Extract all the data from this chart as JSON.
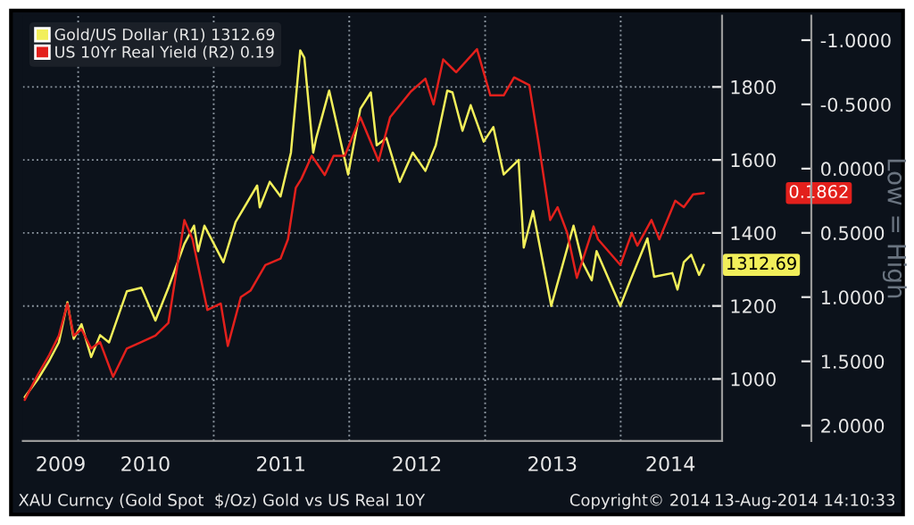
{
  "chart_data": {
    "type": "line",
    "xlim": [
      "2009-08-05",
      "2014-10-01"
    ],
    "xticks": [
      {
        "value": "2009-11-15",
        "label": "2009"
      },
      {
        "value": "2010-01-01",
        "label": null
      },
      {
        "value": "2010-07-01",
        "label": "2010"
      },
      {
        "value": "2011-01-01",
        "label": null
      },
      {
        "value": "2011-07-01",
        "label": "2011"
      },
      {
        "value": "2012-01-01",
        "label": null
      },
      {
        "value": "2012-07-01",
        "label": "2012"
      },
      {
        "value": "2013-01-01",
        "label": null
      },
      {
        "value": "2013-07-01",
        "label": "2013"
      },
      {
        "value": "2014-01-01",
        "label": null
      },
      {
        "value": "2014-05-15",
        "label": "2014"
      }
    ],
    "ylim": [
      830,
      1995
    ],
    "yticks": [
      1000,
      1200,
      1400,
      1600,
      1800
    ],
    "y2lim": [
      2.12,
      -1.19
    ],
    "y2ticks": [
      {
        "value": -1.0,
        "label": "-1.0000"
      },
      {
        "value": -0.5,
        "label": "-0.5000"
      },
      {
        "value": 0.0,
        "label": "0.0000"
      },
      {
        "value": 0.5,
        "label": "0.5000"
      },
      {
        "value": 1.0,
        "label": "1.0000"
      },
      {
        "value": 1.5,
        "label": "1.5000"
      },
      {
        "value": 2.0,
        "label": "2.0000"
      }
    ],
    "y2label": "Low = High",
    "grid": true,
    "legend": "top left",
    "series": [
      {
        "name": "Gold/US Dollar (R1) 1312.69",
        "color": "#f2ef5a",
        "x": [
          "2009-08-10",
          "2009-09-15",
          "2009-10-15",
          "2009-11-10",
          "2009-12-03",
          "2009-12-20",
          "2010-01-10",
          "2010-02-05",
          "2010-03-01",
          "2010-03-25",
          "2010-05-12",
          "2010-06-20",
          "2010-07-28",
          "2010-09-01",
          "2010-10-14",
          "2010-11-09",
          "2010-11-20",
          "2010-12-07",
          "2011-01-27",
          "2011-03-01",
          "2011-04-28",
          "2011-05-05",
          "2011-06-01",
          "2011-06-30",
          "2011-07-28",
          "2011-08-22",
          "2011-09-02",
          "2011-09-26",
          "2011-10-04",
          "2011-11-08",
          "2011-12-29",
          "2012-01-31",
          "2012-02-28",
          "2012-03-15",
          "2012-04-10",
          "2012-05-16",
          "2012-06-20",
          "2012-07-24",
          "2012-08-21",
          "2012-09-21",
          "2012-10-05",
          "2012-11-01",
          "2012-11-23",
          "2012-12-28",
          "2013-01-23",
          "2013-02-20",
          "2013-04-01",
          "2013-04-15",
          "2013-05-10",
          "2013-06-28",
          "2013-08-27",
          "2013-09-20",
          "2013-10-15",
          "2013-10-28",
          "2013-12-31",
          "2014-01-27",
          "2014-03-14",
          "2014-04-01",
          "2014-05-20",
          "2014-06-03",
          "2014-06-20",
          "2014-07-10",
          "2014-07-31",
          "2014-08-13"
        ],
        "values": [
          950,
          1000,
          1050,
          1100,
          1210,
          1110,
          1150,
          1060,
          1120,
          1100,
          1240,
          1250,
          1160,
          1250,
          1370,
          1420,
          1350,
          1420,
          1320,
          1430,
          1530,
          1470,
          1540,
          1500,
          1620,
          1900,
          1880,
          1620,
          1660,
          1790,
          1560,
          1740,
          1785,
          1640,
          1660,
          1540,
          1620,
          1570,
          1640,
          1790,
          1785,
          1680,
          1750,
          1650,
          1690,
          1560,
          1600,
          1360,
          1460,
          1200,
          1420,
          1320,
          1270,
          1350,
          1200,
          1270,
          1385,
          1280,
          1290,
          1245,
          1320,
          1340,
          1285,
          1312.69
        ]
      },
      {
        "name": "US 10Yr Real Yield (R2) 0.19",
        "color": "#e3201c",
        "axis": "y2",
        "x": [
          "2009-08-10",
          "2009-09-15",
          "2009-10-15",
          "2009-11-10",
          "2009-12-03",
          "2009-12-20",
          "2010-01-10",
          "2010-02-05",
          "2010-03-01",
          "2010-04-05",
          "2010-05-12",
          "2010-06-20",
          "2010-07-28",
          "2010-09-01",
          "2010-10-14",
          "2010-11-05",
          "2010-12-15",
          "2011-01-20",
          "2011-02-08",
          "2011-03-15",
          "2011-04-10",
          "2011-05-20",
          "2011-06-30",
          "2011-07-20",
          "2011-08-10",
          "2011-08-25",
          "2011-09-22",
          "2011-10-27",
          "2011-11-20",
          "2011-12-20",
          "2012-01-31",
          "2012-03-20",
          "2012-04-20",
          "2012-06-15",
          "2012-07-24",
          "2012-08-15",
          "2012-09-10",
          "2012-10-15",
          "2012-12-10",
          "2013-01-15",
          "2013-02-20",
          "2013-03-20",
          "2013-04-30",
          "2013-05-25",
          "2013-06-25",
          "2013-07-15",
          "2013-08-10",
          "2013-09-05",
          "2013-10-20",
          "2013-11-01",
          "2013-12-31",
          "2014-01-31",
          "2014-02-15",
          "2014-03-25",
          "2014-04-15",
          "2014-05-28",
          "2014-06-20",
          "2014-07-15",
          "2014-08-13"
        ],
        "values": [
          1.8,
          1.6,
          1.45,
          1.3,
          1.05,
          1.3,
          1.25,
          1.4,
          1.35,
          1.62,
          1.4,
          1.35,
          1.3,
          1.2,
          0.4,
          0.55,
          1.1,
          1.05,
          1.38,
          1.0,
          0.95,
          0.75,
          0.7,
          0.55,
          0.15,
          0.08,
          -0.1,
          0.05,
          -0.1,
          -0.1,
          -0.4,
          -0.06,
          -0.4,
          -0.6,
          -0.7,
          -0.5,
          -0.85,
          -0.75,
          -0.93,
          -0.57,
          -0.57,
          -0.71,
          -0.65,
          -0.2,
          0.4,
          0.3,
          0.5,
          0.85,
          0.45,
          0.55,
          0.75,
          0.5,
          0.6,
          0.4,
          0.55,
          0.25,
          0.3,
          0.2,
          0.19
        ]
      }
    ],
    "annotations": [
      {
        "text": "1312.69",
        "x": "2014-08-13",
        "y": 1312.69
      },
      "0.1862",
      "XAU Curncy (Gold Spot  $/Oz) Gold vs US Real 10Y",
      "Copyright© 2014",
      "13-Aug-2014 14:10:33"
    ]
  }
}
